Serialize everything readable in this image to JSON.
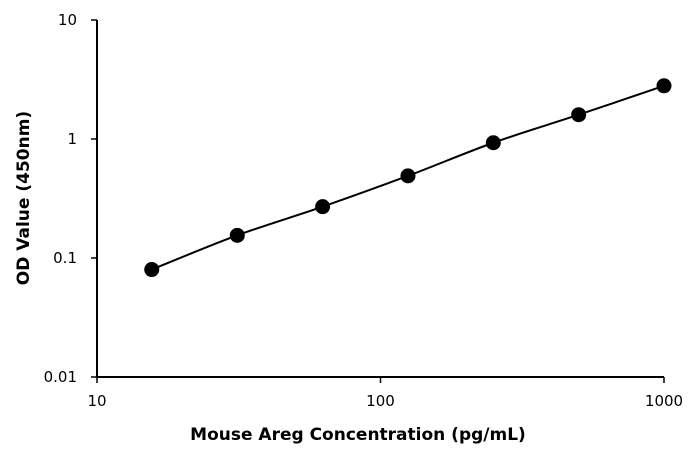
{
  "chart_data": {
    "type": "scatter",
    "title": "",
    "xlabel": "Mouse Areg Concentration (pg/mL)",
    "ylabel": "OD Value (450nm)",
    "x_scale": "log",
    "y_scale": "log",
    "xlim": [
      10,
      1000
    ],
    "ylim": [
      0.01,
      10
    ],
    "x_ticks": [
      "10",
      "100",
      "1000"
    ],
    "y_ticks": [
      "0.01",
      "0.1",
      "1",
      "10"
    ],
    "grid": false,
    "legend": "none",
    "series": [
      {
        "x": [
          15.6,
          31.25,
          62.5,
          125,
          250,
          500,
          1000
        ],
        "y": [
          0.08,
          0.155,
          0.27,
          0.49,
          0.93,
          1.6,
          2.8
        ],
        "marker_color": "#000000",
        "line_color": "#000000",
        "line": "smooth"
      }
    ]
  }
}
